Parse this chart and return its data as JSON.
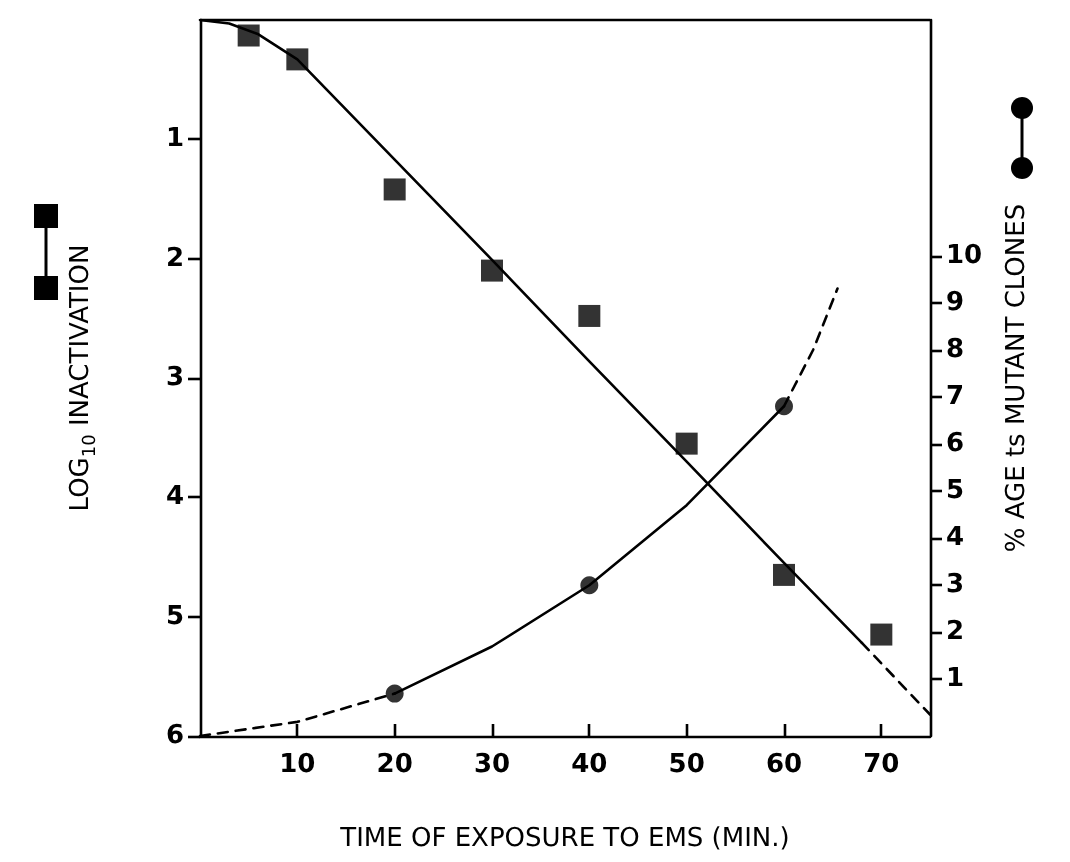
{
  "chart_data": {
    "type": "scatter",
    "xlabel": "TIME OF EXPOSURE TO EMS (MIN.)",
    "ylabel": "LOG$_{10}$ INACTIVATION",
    "y2label": "% AGE ts MUTANT CLONES",
    "xlim": [
      0,
      75
    ],
    "xticks": [
      10,
      20,
      30,
      40,
      50,
      60,
      70
    ],
    "ylim": [
      6,
      0
    ],
    "yticks": [
      1,
      2,
      3,
      4,
      5,
      6
    ],
    "y2lim": [
      -0.2,
      15
    ],
    "y2ticks": [
      1,
      2,
      3,
      4,
      5,
      6,
      7,
      8,
      9,
      10
    ],
    "grid": false,
    "series": [
      {
        "marker": "square",
        "color": "#000000",
        "x": [
          5,
          10,
          20,
          30,
          40,
          50,
          60,
          70
        ],
        "values": [
          0.13,
          0.33,
          1.42,
          2.1,
          2.48,
          3.55,
          4.65,
          5.15
        ]
      },
      {
        "type": "line",
        "marker": "none",
        "line_style": "solid",
        "color": "#000000",
        "x": [
          0,
          3,
          6,
          10,
          20,
          30,
          40,
          50,
          60,
          68
        ],
        "values": [
          0,
          0.03,
          0.12,
          0.33,
          1.17,
          2.01,
          2.86,
          3.7,
          4.55,
          5.22
        ]
      },
      {
        "type": "line",
        "marker": "none",
        "line_style": "dashed",
        "color": "#000000",
        "x": [
          68,
          75
        ],
        "values": [
          5.22,
          5.82
        ]
      },
      {
        "marker": "circle",
        "axis": "y2",
        "color": "#000000",
        "x": [
          20,
          40,
          60
        ],
        "values": [
          0.7,
          3.0,
          6.8
        ]
      },
      {
        "type": "line",
        "marker": "none",
        "line_style": "solid",
        "axis": "y2",
        "color": "#000000",
        "x": [
          20,
          30,
          40,
          50,
          60
        ],
        "values": [
          0.7,
          1.7,
          3.0,
          4.7,
          6.8
        ]
      },
      {
        "type": "line",
        "marker": "none",
        "line_style": "dashed",
        "axis": "y2",
        "color": "#000000",
        "x": [
          0,
          10,
          20
        ],
        "values": [
          -0.2,
          0.1,
          0.7
        ]
      },
      {
        "type": "line",
        "marker": "none",
        "line_style": "dashed",
        "axis": "y2",
        "color": "#000000",
        "x": [
          60,
          63,
          65.5
        ],
        "values": [
          6.8,
          8.0,
          9.3
        ]
      }
    ]
  }
}
